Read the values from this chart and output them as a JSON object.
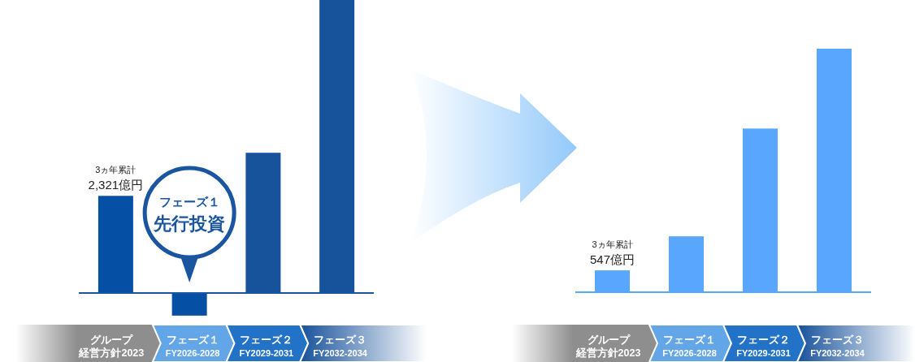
{
  "chart_data": [
    {
      "type": "bar",
      "categories": [
        "グループ経営方針2023",
        "フェーズ１ FY2026-2028",
        "フェーズ２ FY2029-2031",
        "フェーズ３ FY2032-2034"
      ],
      "values": [
        2321,
        -540,
        3350,
        7000
      ],
      "colors": [
        "#0550a5",
        "#0550a5",
        "#17539b",
        "#17539b"
      ],
      "value_labels": [
        "3ヵ年累計 2,321億円",
        null,
        null,
        null
      ],
      "annotations": [
        "フェーズ１先行投資"
      ],
      "ref_lines": [
        {
          "axis": "y",
          "value": 0,
          "color": "#1a55a0"
        }
      ]
    },
    {
      "type": "bar",
      "categories": [
        "グループ経営方針2023",
        "フェーズ１ FY2026-2028",
        "フェーズ２ FY2029-2031",
        "フェーズ３ FY2032-2034"
      ],
      "values": [
        547,
        1400,
        4100,
        6100
      ],
      "color": "#58a6fd",
      "value_labels": [
        "3ヵ年累計 547億円",
        null,
        null,
        null
      ]
    }
  ]
}
